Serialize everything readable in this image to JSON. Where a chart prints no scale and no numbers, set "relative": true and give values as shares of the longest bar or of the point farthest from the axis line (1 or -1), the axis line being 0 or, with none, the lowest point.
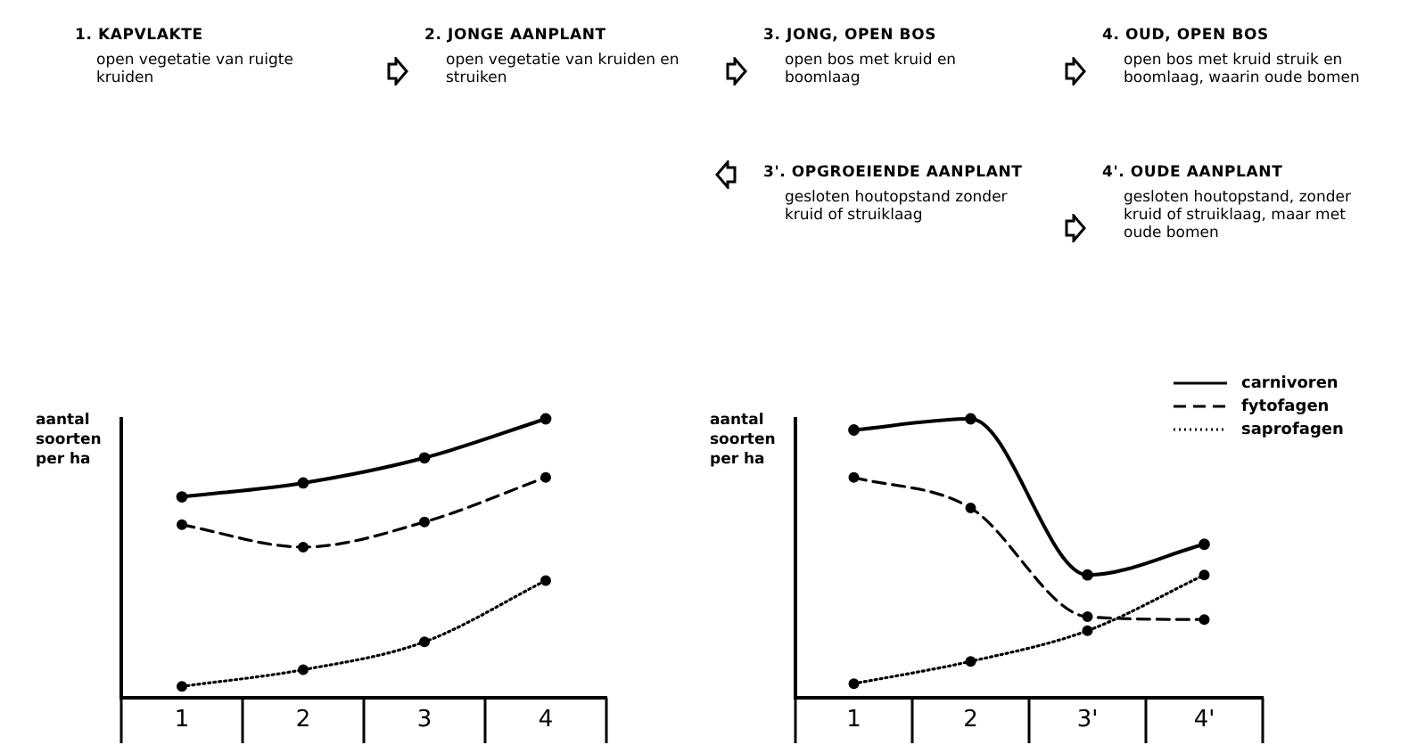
{
  "chart_data": [
    {
      "type": "other",
      "annotations": [
        "1. KAPVLAKTE",
        "open vegetatie van ruigte kruiden",
        "2. JONGE AANPLANT",
        "open vegetatie van kruiden en struiken",
        "3. JONG, OPEN BOS",
        "open bos met kruid en boomlaag",
        "4. OUD, OPEN BOS",
        "open bos met kruid struik en boomlaag, waarin oude bomen",
        "3'. OPGROEIENDE AANPLANT",
        "gesloten houtopstand zonder kruid of struiklaag",
        "4'. OUDE AANPLANT",
        "gesloten houtopstand, zonder kruid of struiklaag, maar met oude bomen"
      ]
    },
    {
      "type": "line",
      "relative": true,
      "ylabel": "aantal soorten per ha",
      "categories": [
        "1",
        "2",
        "3",
        "4"
      ],
      "marker": "circle",
      "grid": false,
      "legend": false,
      "series": [
        {
          "color": "#000000",
          "line_style": "solid",
          "values": [
            0.72,
            0.77,
            0.86,
            1
          ]
        },
        {
          "color": "#000000",
          "line_style": "dashed",
          "values": [
            0.62,
            0.54,
            0.63,
            0.79
          ]
        },
        {
          "color": "#000000",
          "line_style": "dotted",
          "values": [
            0.04,
            0.1,
            0.2,
            0.42
          ]
        }
      ]
    },
    {
      "type": "line",
      "relative": true,
      "ylabel": "aantal soorten per ha",
      "categories": [
        "1",
        "2",
        "3'",
        "4'"
      ],
      "marker": "circle",
      "grid": false,
      "legend": "top right",
      "series": [
        {
          "name": "carnivoren",
          "color": "#000000",
          "line_style": "solid",
          "values": [
            0.96,
            1,
            0.44,
            0.55
          ]
        },
        {
          "name": "fytofagen",
          "color": "#000000",
          "line_style": "dashed",
          "values": [
            0.79,
            0.68,
            0.29,
            0.28
          ]
        },
        {
          "name": "saprofagen",
          "color": "#000000",
          "line_style": "dotted",
          "values": [
            0.05,
            0.13,
            0.24,
            0.44
          ]
        }
      ]
    }
  ]
}
